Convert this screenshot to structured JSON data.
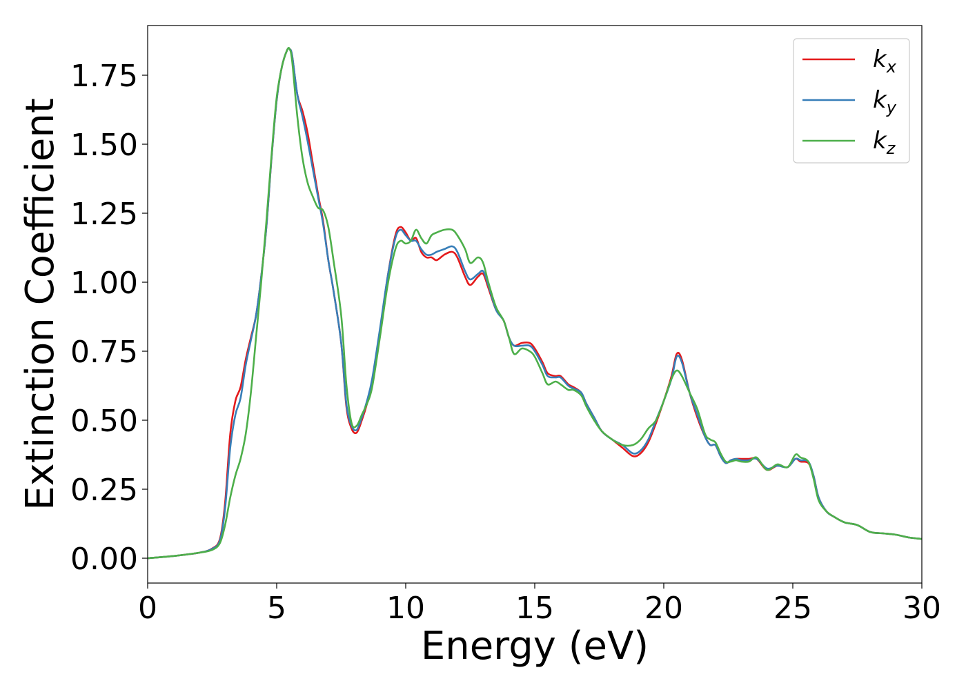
{
  "chart_data": {
    "type": "line",
    "title": "",
    "xlabel": "Energy (eV)",
    "ylabel": "Extinction Coefficient",
    "xlim": [
      0,
      30
    ],
    "ylim": [
      -0.09,
      1.93
    ],
    "xticks": [
      0,
      5,
      10,
      15,
      20,
      25,
      30
    ],
    "xtick_labels": [
      "0",
      "5",
      "10",
      "15",
      "20",
      "25",
      "30"
    ],
    "yticks": [
      0,
      0.25,
      0.5,
      0.75,
      1.0,
      1.25,
      1.5,
      1.75
    ],
    "ytick_labels": [
      "0.00",
      "0.25",
      "0.50",
      "0.75",
      "1.00",
      "1.25",
      "1.50",
      "1.75"
    ],
    "grid": false,
    "legend_position": "top-right",
    "legend": [
      {
        "base": "k",
        "sub": "x",
        "color": "#e41a1c"
      },
      {
        "base": "k",
        "sub": "y",
        "color": "#377eb8"
      },
      {
        "base": "k",
        "sub": "z",
        "color": "#4daf4a"
      }
    ],
    "series": [
      {
        "name": "k_x",
        "color": "#e41a1c",
        "x": [
          0,
          1,
          2,
          2.5,
          2.8,
          3.0,
          3.2,
          3.4,
          3.6,
          3.8,
          4.0,
          4.2,
          4.4,
          4.6,
          4.8,
          5.0,
          5.2,
          5.4,
          5.5,
          5.6,
          5.8,
          6.0,
          6.2,
          6.4,
          6.6,
          6.8,
          7.0,
          7.2,
          7.5,
          7.7,
          7.9,
          8.1,
          8.3,
          8.5,
          8.7,
          9.0,
          9.3,
          9.6,
          9.8,
          10.0,
          10.2,
          10.4,
          10.6,
          10.8,
          11.0,
          11.2,
          11.5,
          11.8,
          12.0,
          12.3,
          12.5,
          12.8,
          13.0,
          13.2,
          13.5,
          13.8,
          14.0,
          14.2,
          14.5,
          14.8,
          15.0,
          15.3,
          15.5,
          15.8,
          16.0,
          16.3,
          16.5,
          16.8,
          17.0,
          17.3,
          17.6,
          18.0,
          18.4,
          18.8,
          19.1,
          19.4,
          19.7,
          20.0,
          20.3,
          20.5,
          20.7,
          21.0,
          21.3,
          21.6,
          21.8,
          22.0,
          22.2,
          22.4,
          22.6,
          22.8,
          23.0,
          23.3,
          23.6,
          24.0,
          24.4,
          24.8,
          25.1,
          25.3,
          25.6,
          25.8,
          26.0,
          26.3,
          26.6,
          27.0,
          27.5,
          28.0,
          28.5,
          29.0,
          29.5,
          30.0
        ],
        "y": [
          0.0,
          0.008,
          0.02,
          0.035,
          0.07,
          0.2,
          0.45,
          0.57,
          0.62,
          0.72,
          0.8,
          0.88,
          1.02,
          1.2,
          1.45,
          1.66,
          1.78,
          1.84,
          1.845,
          1.82,
          1.68,
          1.62,
          1.54,
          1.43,
          1.32,
          1.22,
          1.08,
          0.97,
          0.78,
          0.55,
          0.47,
          0.455,
          0.5,
          0.56,
          0.64,
          0.82,
          1.02,
          1.17,
          1.2,
          1.18,
          1.15,
          1.16,
          1.11,
          1.09,
          1.09,
          1.08,
          1.1,
          1.11,
          1.09,
          1.02,
          0.99,
          1.02,
          1.03,
          0.98,
          0.9,
          0.86,
          0.8,
          0.77,
          0.78,
          0.78,
          0.76,
          0.71,
          0.67,
          0.66,
          0.66,
          0.63,
          0.62,
          0.6,
          0.56,
          0.51,
          0.46,
          0.43,
          0.4,
          0.37,
          0.38,
          0.42,
          0.49,
          0.57,
          0.66,
          0.74,
          0.72,
          0.6,
          0.51,
          0.44,
          0.41,
          0.41,
          0.37,
          0.345,
          0.355,
          0.36,
          0.36,
          0.36,
          0.36,
          0.32,
          0.335,
          0.33,
          0.36,
          0.35,
          0.345,
          0.3,
          0.22,
          0.17,
          0.15,
          0.13,
          0.12,
          0.095,
          0.09,
          0.085,
          0.075,
          0.07
        ]
      },
      {
        "name": "k_y",
        "color": "#377eb8",
        "x": [
          0,
          1,
          2,
          2.5,
          2.8,
          3.0,
          3.2,
          3.4,
          3.6,
          3.8,
          4.0,
          4.2,
          4.4,
          4.6,
          4.8,
          5.0,
          5.2,
          5.4,
          5.5,
          5.6,
          5.8,
          6.0,
          6.2,
          6.4,
          6.6,
          6.8,
          7.0,
          7.2,
          7.5,
          7.7,
          7.9,
          8.1,
          8.3,
          8.5,
          8.7,
          9.0,
          9.3,
          9.6,
          9.8,
          10.0,
          10.2,
          10.4,
          10.6,
          10.8,
          11.0,
          11.2,
          11.5,
          11.8,
          12.0,
          12.3,
          12.5,
          12.8,
          13.0,
          13.2,
          13.5,
          13.8,
          14.0,
          14.2,
          14.5,
          14.8,
          15.0,
          15.3,
          15.5,
          15.8,
          16.0,
          16.3,
          16.5,
          16.8,
          17.0,
          17.3,
          17.6,
          18.0,
          18.4,
          18.8,
          19.1,
          19.4,
          19.7,
          20.0,
          20.3,
          20.5,
          20.7,
          21.0,
          21.3,
          21.6,
          21.8,
          22.0,
          22.2,
          22.4,
          22.6,
          22.8,
          23.0,
          23.3,
          23.6,
          24.0,
          24.4,
          24.8,
          25.1,
          25.3,
          25.6,
          25.8,
          26.0,
          26.3,
          26.6,
          27.0,
          27.5,
          28.0,
          28.5,
          29.0,
          29.5,
          30.0
        ],
        "y": [
          0.0,
          0.008,
          0.02,
          0.034,
          0.065,
          0.18,
          0.4,
          0.52,
          0.58,
          0.7,
          0.79,
          0.88,
          1.02,
          1.2,
          1.45,
          1.66,
          1.78,
          1.84,
          1.845,
          1.82,
          1.68,
          1.6,
          1.51,
          1.41,
          1.31,
          1.21,
          1.08,
          0.97,
          0.78,
          0.56,
          0.48,
          0.465,
          0.51,
          0.57,
          0.65,
          0.83,
          1.02,
          1.16,
          1.19,
          1.17,
          1.15,
          1.15,
          1.12,
          1.1,
          1.1,
          1.11,
          1.12,
          1.13,
          1.11,
          1.04,
          1.01,
          1.03,
          1.04,
          0.99,
          0.9,
          0.86,
          0.8,
          0.77,
          0.77,
          0.77,
          0.75,
          0.7,
          0.66,
          0.655,
          0.655,
          0.625,
          0.615,
          0.6,
          0.56,
          0.51,
          0.46,
          0.43,
          0.41,
          0.38,
          0.39,
          0.43,
          0.5,
          0.57,
          0.65,
          0.73,
          0.71,
          0.6,
          0.52,
          0.44,
          0.41,
          0.41,
          0.37,
          0.345,
          0.355,
          0.36,
          0.355,
          0.355,
          0.36,
          0.325,
          0.335,
          0.33,
          0.36,
          0.355,
          0.35,
          0.3,
          0.22,
          0.17,
          0.15,
          0.13,
          0.12,
          0.095,
          0.09,
          0.085,
          0.075,
          0.07
        ]
      },
      {
        "name": "k_z",
        "color": "#4daf4a",
        "x": [
          0,
          1,
          2,
          2.5,
          2.8,
          3.0,
          3.2,
          3.4,
          3.6,
          3.8,
          4.0,
          4.2,
          4.4,
          4.6,
          4.8,
          5.0,
          5.2,
          5.4,
          5.5,
          5.6,
          5.8,
          6.0,
          6.2,
          6.4,
          6.6,
          6.8,
          7.0,
          7.2,
          7.5,
          7.7,
          7.9,
          8.1,
          8.3,
          8.5,
          8.7,
          9.0,
          9.3,
          9.6,
          9.8,
          10.0,
          10.2,
          10.4,
          10.6,
          10.8,
          11.0,
          11.2,
          11.5,
          11.8,
          12.0,
          12.3,
          12.5,
          12.8,
          13.0,
          13.2,
          13.5,
          13.8,
          14.0,
          14.2,
          14.5,
          14.8,
          15.0,
          15.3,
          15.5,
          15.8,
          16.0,
          16.3,
          16.5,
          16.8,
          17.0,
          17.3,
          17.6,
          18.0,
          18.4,
          18.8,
          19.1,
          19.4,
          19.7,
          20.0,
          20.3,
          20.5,
          20.7,
          21.0,
          21.3,
          21.6,
          21.8,
          22.0,
          22.2,
          22.4,
          22.6,
          22.8,
          23.0,
          23.3,
          23.6,
          24.0,
          24.4,
          24.8,
          25.1,
          25.3,
          25.6,
          25.8,
          26.0,
          26.3,
          26.6,
          27.0,
          27.5,
          28.0,
          28.5,
          29.0,
          29.5,
          30.0
        ],
        "y": [
          0.0,
          0.008,
          0.02,
          0.03,
          0.055,
          0.12,
          0.22,
          0.3,
          0.36,
          0.45,
          0.6,
          0.8,
          1.0,
          1.22,
          1.46,
          1.67,
          1.78,
          1.84,
          1.845,
          1.8,
          1.6,
          1.45,
          1.36,
          1.31,
          1.27,
          1.26,
          1.2,
          1.08,
          0.88,
          0.63,
          0.49,
          0.48,
          0.52,
          0.56,
          0.62,
          0.8,
          0.99,
          1.12,
          1.15,
          1.14,
          1.15,
          1.19,
          1.16,
          1.14,
          1.17,
          1.18,
          1.19,
          1.19,
          1.17,
          1.12,
          1.07,
          1.09,
          1.07,
          1.0,
          0.91,
          0.86,
          0.8,
          0.74,
          0.76,
          0.75,
          0.73,
          0.67,
          0.63,
          0.64,
          0.63,
          0.61,
          0.61,
          0.59,
          0.55,
          0.5,
          0.46,
          0.43,
          0.41,
          0.41,
          0.43,
          0.47,
          0.5,
          0.57,
          0.65,
          0.68,
          0.66,
          0.6,
          0.54,
          0.45,
          0.43,
          0.42,
          0.38,
          0.35,
          0.35,
          0.355,
          0.35,
          0.35,
          0.365,
          0.32,
          0.34,
          0.33,
          0.375,
          0.365,
          0.35,
          0.29,
          0.21,
          0.17,
          0.15,
          0.13,
          0.12,
          0.095,
          0.09,
          0.085,
          0.075,
          0.07
        ]
      }
    ]
  }
}
